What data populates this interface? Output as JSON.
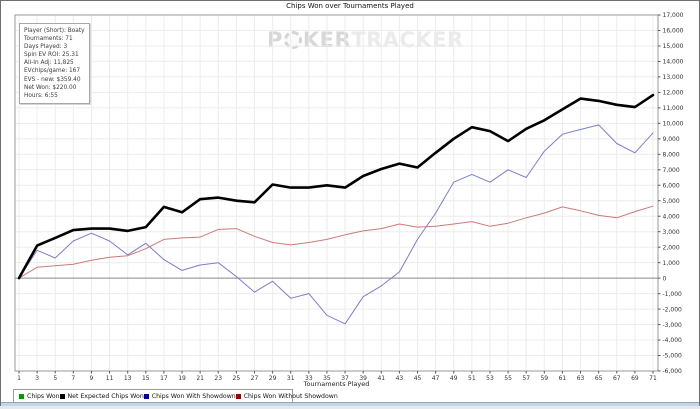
{
  "window": {
    "title": "Chips Won over Tournaments Played"
  },
  "stats_box": {
    "lines": [
      "Player (Short): Boaty",
      "Tournaments: 71",
      "Days Played: 3",
      "Spin EV ROI: 25.31",
      "All-In Adj: 11,825",
      "EVchips/game: 167",
      "EVS - new: $359.40",
      "Net Won: $220.00",
      "Hours: 6:55"
    ]
  },
  "watermark": {
    "part1": "P",
    "part2": "KER",
    "part3": "TRACKER"
  },
  "legend": {
    "entries": [
      {
        "label": "Chips Won",
        "color": "#009900"
      },
      {
        "label": "Net Expected Chips Won",
        "color": "#000000"
      },
      {
        "label": "Chips Won With Showdown",
        "color": "#000099"
      },
      {
        "label": "Chips Won Without Showdown",
        "color": "#990000"
      }
    ]
  },
  "chart_data": {
    "type": "line",
    "title": "Chips Won over Tournaments Played",
    "xlabel": "Tournaments Played",
    "ylabel": "",
    "grid": true,
    "legend_position": "bottom-left",
    "x_axis": {
      "min": 1,
      "max": 71,
      "tick_step": 2,
      "tick_values": "odd numbers 1 to 71"
    },
    "y_axis": {
      "min": -6000,
      "max": 17000,
      "grid_step": 1000,
      "labels_side": "right",
      "zero_line": true
    },
    "note": "The green 'Chips Won' line visually coincides with the thick black 'Net Expected Chips Won' line; only black, blue and red polylines are distinguishable. Values estimated from gridlines.",
    "x": [
      1,
      3,
      5,
      7,
      9,
      11,
      13,
      15,
      17,
      19,
      21,
      23,
      25,
      27,
      29,
      31,
      33,
      35,
      37,
      39,
      41,
      43,
      45,
      47,
      49,
      51,
      53,
      55,
      57,
      59,
      61,
      63,
      65,
      67,
      69,
      71
    ],
    "series": [
      {
        "name": "Net Expected Chips Won",
        "line_color": "#000000",
        "line_width": 2.6,
        "values": [
          0,
          2100,
          2600,
          3100,
          3200,
          3200,
          3050,
          3300,
          4600,
          4250,
          5100,
          5200,
          5000,
          4900,
          6050,
          5850,
          5850,
          6000,
          5850,
          6600,
          7050,
          7400,
          7150,
          8100,
          9000,
          9750,
          9500,
          8850,
          9650,
          10200,
          10900,
          11600,
          11450,
          11200,
          11050,
          11825
        ]
      },
      {
        "name": "Chips Won With Showdown",
        "line_color": "#7d7dcc",
        "line_width": 1,
        "values": [
          0,
          1800,
          1300,
          2400,
          2900,
          2400,
          1500,
          2250,
          1200,
          500,
          850,
          1000,
          100,
          -900,
          -200,
          -1300,
          -1000,
          -2400,
          -2950,
          -1200,
          -500,
          400,
          2500,
          4200,
          6200,
          6700,
          6200,
          7000,
          6500,
          8200,
          9300,
          9600,
          9900,
          8700,
          8100,
          9380
        ]
      },
      {
        "name": "Chips Won Without Showdown",
        "line_color": "#cc7a7a",
        "line_width": 1,
        "values": [
          0,
          700,
          800,
          900,
          1150,
          1350,
          1450,
          1900,
          2500,
          2600,
          2650,
          3150,
          3200,
          2700,
          2300,
          2150,
          2300,
          2500,
          2800,
          3050,
          3200,
          3500,
          3300,
          3350,
          3500,
          3650,
          3350,
          3550,
          3900,
          4200,
          4600,
          4350,
          4050,
          3900,
          4300,
          4650
        ]
      }
    ]
  }
}
